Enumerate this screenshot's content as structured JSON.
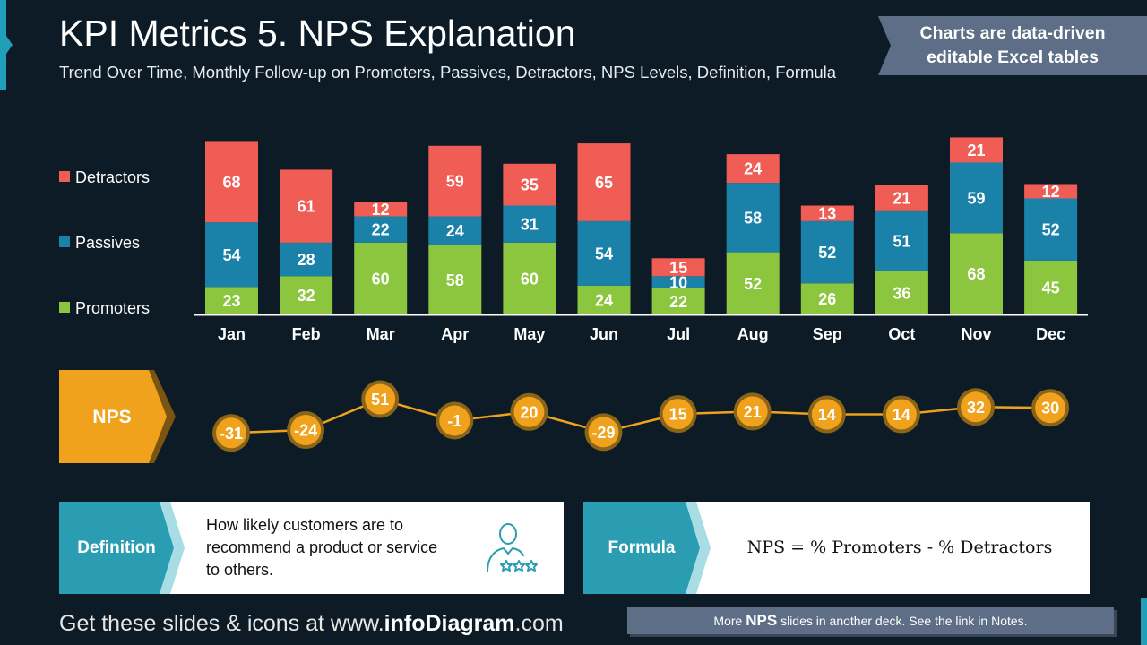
{
  "header": {
    "title": "KPI Metrics 5. NPS Explanation",
    "subtitle": "Trend Over Time, Monthly Follow-up on Promoters, Passives, Detractors, NPS Levels, Definition, Formula",
    "banner_line1": "Charts are data-driven",
    "banner_line2": "editable Excel tables"
  },
  "chart_data": [
    {
      "type": "bar",
      "stacked": true,
      "categories": [
        "Jan",
        "Feb",
        "Mar",
        "Apr",
        "May",
        "Jun",
        "Jul",
        "Aug",
        "Sep",
        "Oct",
        "Nov",
        "Dec"
      ],
      "series": [
        {
          "name": "Promoters",
          "color": "#8cc63f",
          "values": [
            23,
            32,
            60,
            58,
            60,
            24,
            22,
            52,
            26,
            36,
            68,
            45
          ]
        },
        {
          "name": "Passives",
          "color": "#1a82a9",
          "values": [
            54,
            28,
            22,
            24,
            31,
            54,
            10,
            58,
            52,
            51,
            59,
            52
          ]
        },
        {
          "name": "Detractors",
          "color": "#ef5d55",
          "values": [
            68,
            61,
            12,
            59,
            35,
            65,
            15,
            24,
            13,
            21,
            21,
            12
          ]
        }
      ],
      "legend_position": "left",
      "grid": false
    },
    {
      "type": "line",
      "label": "NPS",
      "categories": [
        "Jan",
        "Feb",
        "Mar",
        "Apr",
        "May",
        "Jun",
        "Jul",
        "Aug",
        "Sep",
        "Oct",
        "Nov",
        "Dec"
      ],
      "values": [
        -31,
        -24,
        51,
        -1,
        20,
        -29,
        15,
        21,
        14,
        14,
        32,
        30
      ],
      "color": "#f0a21d"
    }
  ],
  "definition": {
    "label": "Definition",
    "line1": "How likely customers are to",
    "line2": "recommend a product or service",
    "line3": "to others.",
    "icon": "customer-rating-icon"
  },
  "formula": {
    "label": "Formula",
    "text": "NPS = % Promoters - % Detractors"
  },
  "footer": {
    "prefix": "Get these slides & icons at www.",
    "brand": "infoDiagram",
    "suffix": ".com",
    "more_prefix": "More ",
    "more_bold": "NPS",
    "more_suffix": " slides in another deck. See the link in Notes."
  },
  "colors": {
    "background": "#0c1b26",
    "accent_teal": "#1f9fb8",
    "nps_orange": "#f0a21d"
  }
}
